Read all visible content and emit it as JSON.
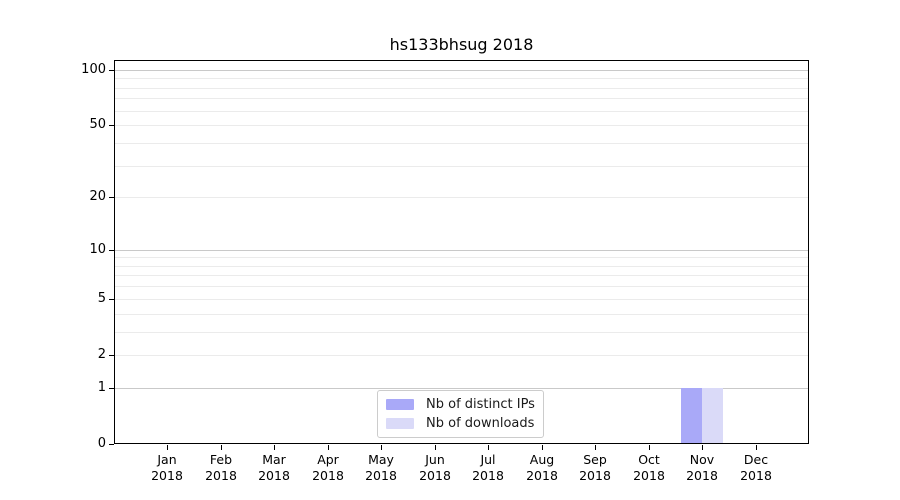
{
  "chart_data": {
    "type": "bar",
    "title": "hs133bhsug 2018",
    "categories": [
      {
        "month": "Jan",
        "year": "2018"
      },
      {
        "month": "Feb",
        "year": "2018"
      },
      {
        "month": "Mar",
        "year": "2018"
      },
      {
        "month": "Apr",
        "year": "2018"
      },
      {
        "month": "May",
        "year": "2018"
      },
      {
        "month": "Jun",
        "year": "2018"
      },
      {
        "month": "Jul",
        "year": "2018"
      },
      {
        "month": "Aug",
        "year": "2018"
      },
      {
        "month": "Sep",
        "year": "2018"
      },
      {
        "month": "Oct",
        "year": "2018"
      },
      {
        "month": "Nov",
        "year": "2018"
      },
      {
        "month": "Dec",
        "year": "2018"
      }
    ],
    "series": [
      {
        "name": "Nb of distinct IPs",
        "color": "#a9a9f8",
        "values": [
          0,
          0,
          0,
          0,
          0,
          0,
          0,
          0,
          0,
          0,
          1,
          0
        ]
      },
      {
        "name": "Nb of downloads",
        "color": "#dadaf8",
        "values": [
          0,
          0,
          0,
          0,
          0,
          0,
          0,
          0,
          0,
          0,
          1,
          0
        ]
      }
    ],
    "xlabel": "",
    "ylabel": "",
    "y_axis": {
      "scale": "log10(1+v)",
      "ticks": [
        0,
        1,
        2,
        5,
        10,
        20,
        50,
        100
      ],
      "ylim": [
        0,
        113
      ],
      "emphasized_gridlines": [
        1,
        10,
        100
      ],
      "minor_gridlines": [
        3,
        4,
        6,
        7,
        8,
        9,
        30,
        40,
        60,
        70,
        80,
        90
      ]
    },
    "grid": "on",
    "legend_position": "bottom-center",
    "colors": {
      "grid_major": "#c9c9c9",
      "grid_minor": "#ebebeb",
      "spine": "#000000",
      "background": "#ffffff"
    }
  }
}
